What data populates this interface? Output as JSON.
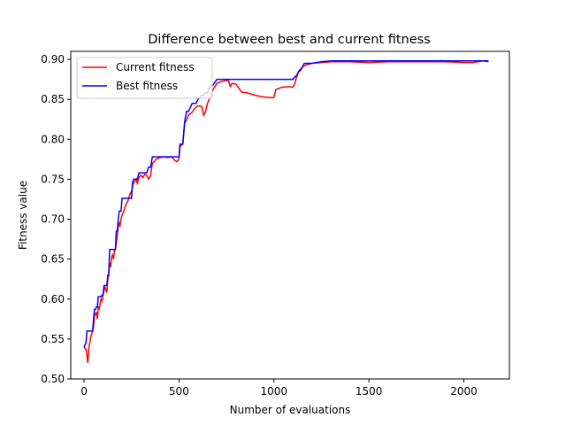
{
  "chart_data": {
    "type": "line",
    "title": "Difference between best and current fitness",
    "xlabel": "Number of evaluations",
    "ylabel": "Fitness value",
    "xlim": [
      -70,
      2240
    ],
    "ylim": [
      0.5,
      0.91
    ],
    "xticks": [
      0,
      500,
      1000,
      1500,
      2000
    ],
    "yticks": [
      "0.50",
      "0.55",
      "0.60",
      "0.65",
      "0.70",
      "0.75",
      "0.80",
      "0.85",
      "0.90"
    ],
    "grid": false,
    "legend_position": "top-left",
    "series": [
      {
        "name": "Current fitness",
        "color": "#ff0000",
        "x": [
          0,
          10,
          15,
          20,
          25,
          30,
          35,
          40,
          45,
          50,
          55,
          60,
          65,
          70,
          75,
          80,
          85,
          90,
          95,
          100,
          105,
          110,
          115,
          120,
          125,
          130,
          135,
          140,
          145,
          150,
          155,
          160,
          165,
          170,
          175,
          180,
          185,
          190,
          195,
          200,
          210,
          215,
          220,
          230,
          240,
          250,
          255,
          260,
          270,
          275,
          280,
          290,
          300,
          310,
          320,
          330,
          340,
          350,
          360,
          370,
          380,
          390,
          400,
          420,
          440,
          460,
          480,
          490,
          500,
          505,
          510,
          520,
          530,
          540,
          550,
          560,
          570,
          580,
          590,
          600,
          620,
          630,
          640,
          650,
          660,
          680,
          700,
          720,
          740,
          760,
          770,
          780,
          800,
          830,
          860,
          900,
          940,
          980,
          1000,
          1010,
          1040,
          1080,
          1100,
          1110,
          1120,
          1130,
          1140,
          1160,
          1200,
          1250,
          1300,
          1400,
          1500,
          1600,
          1700,
          1800,
          1900,
          2000,
          2050,
          2100,
          2130
        ],
        "y": [
          0.54,
          0.537,
          0.53,
          0.52,
          0.538,
          0.545,
          0.552,
          0.556,
          0.56,
          0.565,
          0.578,
          0.582,
          0.583,
          0.575,
          0.59,
          0.588,
          0.595,
          0.6,
          0.598,
          0.605,
          0.61,
          0.615,
          0.612,
          0.608,
          0.625,
          0.63,
          0.645,
          0.64,
          0.652,
          0.655,
          0.65,
          0.66,
          0.662,
          0.67,
          0.68,
          0.69,
          0.695,
          0.692,
          0.7,
          0.705,
          0.71,
          0.715,
          0.718,
          0.722,
          0.73,
          0.735,
          0.74,
          0.745,
          0.748,
          0.75,
          0.745,
          0.752,
          0.755,
          0.752,
          0.756,
          0.755,
          0.75,
          0.754,
          0.77,
          0.772,
          0.775,
          0.776,
          0.777,
          0.778,
          0.777,
          0.778,
          0.773,
          0.772,
          0.775,
          0.79,
          0.792,
          0.794,
          0.82,
          0.824,
          0.83,
          0.832,
          0.834,
          0.838,
          0.84,
          0.842,
          0.841,
          0.83,
          0.835,
          0.845,
          0.85,
          0.862,
          0.87,
          0.872,
          0.873,
          0.874,
          0.866,
          0.87,
          0.869,
          0.859,
          0.858,
          0.855,
          0.853,
          0.852,
          0.852,
          0.862,
          0.865,
          0.866,
          0.865,
          0.87,
          0.878,
          0.885,
          0.888,
          0.892,
          0.895,
          0.896,
          0.897,
          0.897,
          0.896,
          0.897,
          0.897,
          0.897,
          0.897,
          0.896,
          0.896,
          0.898,
          0.897
        ]
      },
      {
        "name": "Best fitness",
        "color": "#0000ff",
        "x": [
          0,
          10,
          15,
          20,
          25,
          30,
          35,
          40,
          45,
          50,
          55,
          60,
          65,
          70,
          75,
          80,
          85,
          90,
          95,
          100,
          105,
          110,
          115,
          120,
          125,
          130,
          135,
          140,
          145,
          150,
          155,
          160,
          165,
          170,
          175,
          180,
          185,
          190,
          195,
          200,
          210,
          215,
          220,
          230,
          240,
          250,
          255,
          260,
          270,
          275,
          280,
          290,
          300,
          310,
          320,
          330,
          340,
          350,
          360,
          370,
          380,
          390,
          400,
          420,
          440,
          460,
          480,
          490,
          500,
          505,
          510,
          520,
          530,
          540,
          550,
          560,
          570,
          580,
          590,
          600,
          620,
          630,
          640,
          650,
          660,
          680,
          700,
          720,
          740,
          760,
          770,
          780,
          800,
          830,
          860,
          900,
          940,
          980,
          1000,
          1010,
          1040,
          1080,
          1100,
          1110,
          1120,
          1130,
          1140,
          1160,
          1200,
          1250,
          1300,
          1400,
          1500,
          1600,
          1700,
          1800,
          1900,
          2000,
          2050,
          2100,
          2130
        ],
        "y": [
          0.54,
          0.545,
          0.56,
          0.56,
          0.56,
          0.56,
          0.56,
          0.56,
          0.56,
          0.575,
          0.587,
          0.587,
          0.59,
          0.59,
          0.603,
          0.603,
          0.603,
          0.603,
          0.605,
          0.605,
          0.617,
          0.617,
          0.617,
          0.617,
          0.63,
          0.63,
          0.662,
          0.662,
          0.662,
          0.662,
          0.662,
          0.662,
          0.662,
          0.685,
          0.685,
          0.7,
          0.71,
          0.71,
          0.71,
          0.726,
          0.726,
          0.726,
          0.726,
          0.726,
          0.726,
          0.726,
          0.745,
          0.75,
          0.75,
          0.75,
          0.75,
          0.758,
          0.758,
          0.758,
          0.758,
          0.758,
          0.765,
          0.765,
          0.778,
          0.778,
          0.778,
          0.778,
          0.778,
          0.778,
          0.778,
          0.778,
          0.778,
          0.778,
          0.778,
          0.794,
          0.794,
          0.794,
          0.822,
          0.835,
          0.835,
          0.84,
          0.845,
          0.845,
          0.845,
          0.85,
          0.855,
          0.855,
          0.858,
          0.858,
          0.865,
          0.868,
          0.875,
          0.875,
          0.875,
          0.875,
          0.875,
          0.875,
          0.875,
          0.875,
          0.875,
          0.875,
          0.875,
          0.875,
          0.875,
          0.875,
          0.875,
          0.875,
          0.875,
          0.878,
          0.88,
          0.885,
          0.886,
          0.895,
          0.895,
          0.897,
          0.898,
          0.898,
          0.898,
          0.898,
          0.898,
          0.898,
          0.898,
          0.898,
          0.898,
          0.898,
          0.898
        ]
      }
    ]
  }
}
